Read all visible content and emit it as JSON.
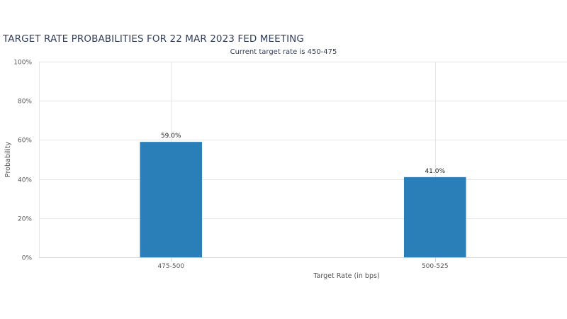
{
  "chart_data": {
    "type": "bar",
    "title": "TARGET RATE PROBABILITIES FOR 22 MAR 2023 FED MEETING",
    "subtitle": "Current target rate is 450-475",
    "xlabel": "Target Rate (in bps)",
    "ylabel": "Probability",
    "categories": [
      "475-500",
      "500-525"
    ],
    "values": [
      59.0,
      41.0
    ],
    "data_labels": [
      "59.0%",
      "41.0%"
    ],
    "ylim": [
      0,
      100
    ],
    "yticks": [
      0,
      20,
      40,
      60,
      80,
      100
    ],
    "ytick_labels": [
      "0%",
      "20%",
      "40%",
      "60%",
      "80%",
      "100%"
    ],
    "grid": true,
    "bar_color": "#2b7fb8"
  }
}
